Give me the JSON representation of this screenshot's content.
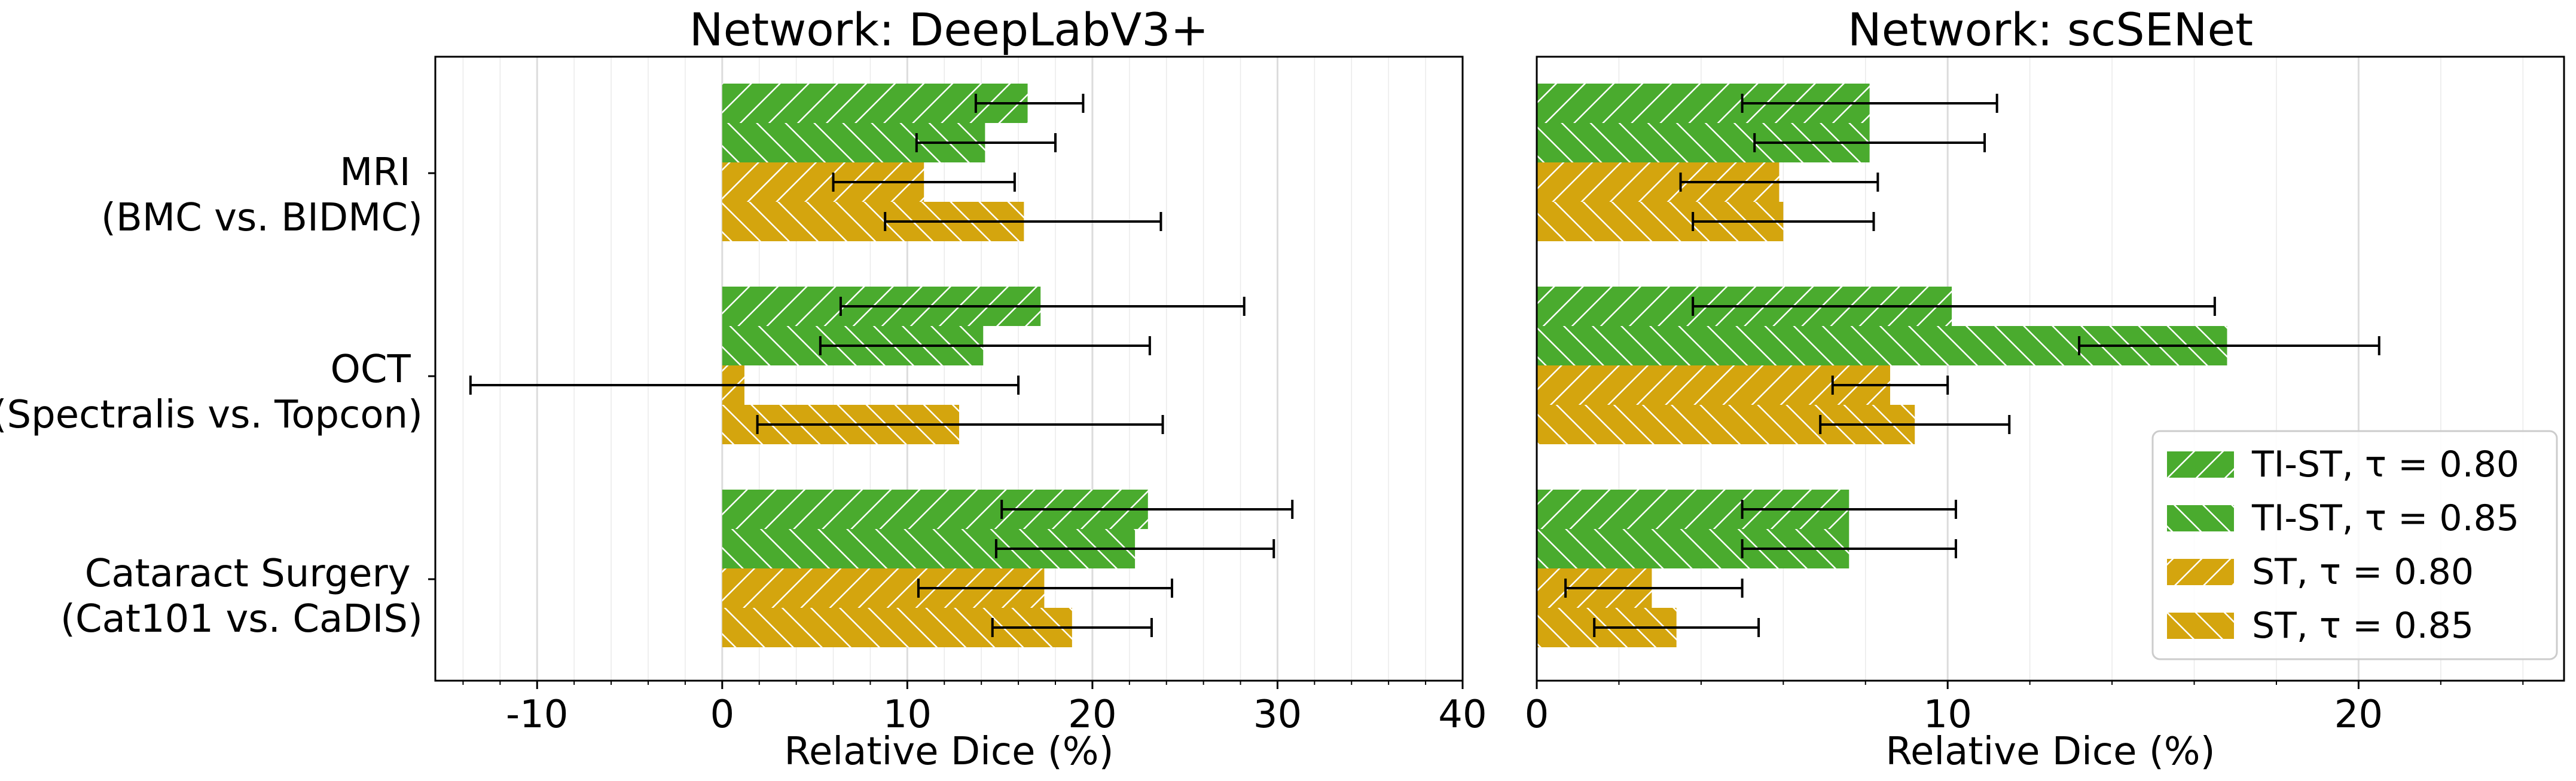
{
  "colors": {
    "green": "#4aab2e",
    "gold": "#d4a50e",
    "errorbar": "#000000",
    "grid": "#dcdcdc"
  },
  "categories": [
    [
      "MRI",
      "(BMC vs. BIDMC)"
    ],
    [
      "OCT",
      "(Spectralis vs. Topcon)"
    ],
    [
      "Cataract Surgery",
      "(Cat101 vs. CaDIS)"
    ]
  ],
  "legend": {
    "placement": "lower-right",
    "entries": [
      "TI-ST, τ = 0.80",
      "TI-ST, τ = 0.85",
      "ST, τ = 0.80",
      "ST, τ = 0.85"
    ]
  },
  "chart_data": [
    {
      "type": "bar",
      "orientation": "horizontal",
      "title": "Network: DeepLabV3+",
      "xlabel": "Relative Dice (%)",
      "xlim": [
        -15.5,
        40
      ],
      "xticks": [
        -10,
        0,
        10,
        20,
        30,
        40
      ],
      "xtick_labels": [
        "-10",
        "0",
        "10",
        "20",
        "30",
        "40"
      ],
      "grid": true,
      "categories": [
        "MRI (BMC vs. BIDMC)",
        "OCT (Spectralis vs. Topcon)",
        "Cataract Surgery (Cat101 vs. CaDIS)"
      ],
      "series": [
        {
          "name": "TI-ST, τ = 0.80",
          "color": "green",
          "hatch": "forward",
          "values": [
            16.5,
            17.2,
            23.0
          ],
          "err_low": [
            13.7,
            6.4,
            15.1
          ],
          "err_high": [
            19.5,
            28.2,
            30.8
          ]
        },
        {
          "name": "TI-ST, τ = 0.85",
          "color": "green",
          "hatch": "back",
          "values": [
            14.2,
            14.1,
            22.3
          ],
          "err_low": [
            10.5,
            5.3,
            14.8
          ],
          "err_high": [
            18.0,
            23.1,
            29.8
          ]
        },
        {
          "name": "ST, τ = 0.80",
          "color": "gold",
          "hatch": "forward",
          "values": [
            10.9,
            1.2,
            17.4
          ],
          "err_low": [
            6.0,
            -13.6,
            10.6
          ],
          "err_high": [
            15.8,
            16.0,
            24.3
          ]
        },
        {
          "name": "ST, τ = 0.85",
          "color": "gold",
          "hatch": "back",
          "values": [
            16.3,
            12.8,
            18.9
          ],
          "err_low": [
            8.8,
            1.9,
            14.6
          ],
          "err_high": [
            23.7,
            23.8,
            23.2
          ]
        }
      ]
    },
    {
      "type": "bar",
      "orientation": "horizontal",
      "title": "Network: scSENet",
      "xlabel": "Relative Dice (%)",
      "xlim": [
        0,
        25
      ],
      "xticks": [
        0,
        10,
        20
      ],
      "xtick_labels": [
        "0",
        "10",
        "20"
      ],
      "grid": true,
      "categories": [
        "MRI (BMC vs. BIDMC)",
        "OCT (Spectralis vs. Topcon)",
        "Cataract Surgery (Cat101 vs. CaDIS)"
      ],
      "series": [
        {
          "name": "TI-ST, τ = 0.80",
          "color": "green",
          "hatch": "forward",
          "values": [
            8.1,
            10.1,
            7.6
          ],
          "err_low": [
            5.0,
            3.8,
            5.0
          ],
          "err_high": [
            11.2,
            16.5,
            10.2
          ]
        },
        {
          "name": "TI-ST, τ = 0.85",
          "color": "green",
          "hatch": "back",
          "values": [
            8.1,
            16.8,
            7.6
          ],
          "err_low": [
            5.3,
            13.2,
            5.0
          ],
          "err_high": [
            10.9,
            20.5,
            10.2
          ]
        },
        {
          "name": "ST, τ = 0.80",
          "color": "gold",
          "hatch": "forward",
          "values": [
            5.9,
            8.6,
            2.8
          ],
          "err_low": [
            3.5,
            7.2,
            0.7
          ],
          "err_high": [
            8.3,
            10.0,
            5.0
          ]
        },
        {
          "name": "ST, τ = 0.85",
          "color": "gold",
          "hatch": "back",
          "values": [
            6.0,
            9.2,
            3.4
          ],
          "err_low": [
            3.8,
            6.9,
            1.4
          ],
          "err_high": [
            8.2,
            11.5,
            5.4
          ]
        }
      ]
    }
  ]
}
